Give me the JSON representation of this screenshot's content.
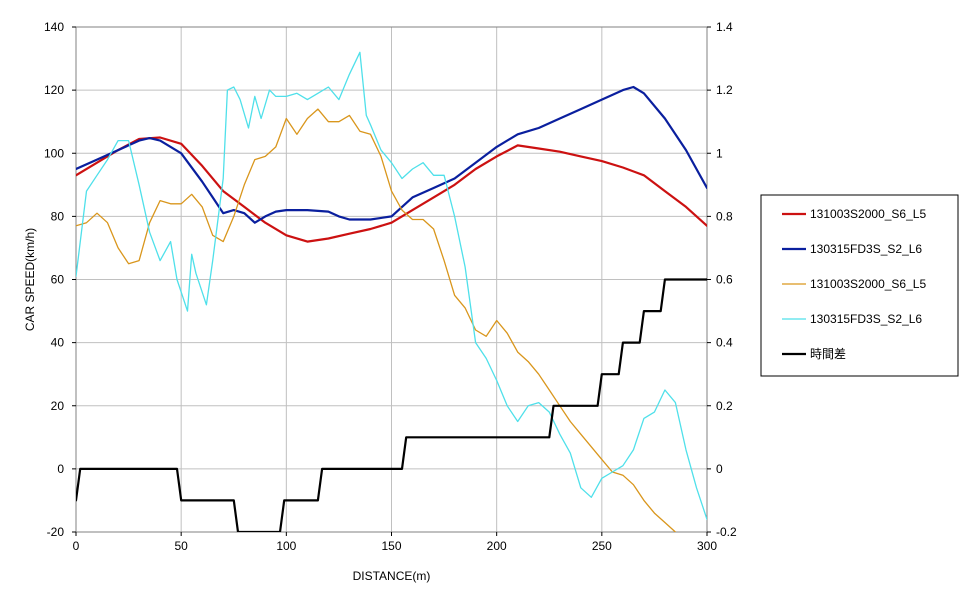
{
  "chart_data": {
    "type": "line",
    "title": "",
    "xlabel": "DISTANCE(m)",
    "ylabel": "CAR SPEED(km/h)",
    "y2label": "",
    "xlim": [
      0,
      300
    ],
    "ylim": [
      -20,
      140
    ],
    "y2lim": [
      -0.2,
      1.4
    ],
    "x_ticks": [
      "0",
      "50",
      "100",
      "150",
      "200",
      "250",
      "300"
    ],
    "y_ticks": [
      "-20",
      "0",
      "20",
      "40",
      "60",
      "80",
      "100",
      "120",
      "140"
    ],
    "y2_ticks": [
      "-0.2",
      "0",
      "0.2",
      "0.4",
      "0.6",
      "0.8",
      "1",
      "1.2",
      "1.4"
    ],
    "grid": true,
    "legend_position": "right",
    "series": [
      {
        "name": "131003S2000_S6_L5",
        "color": "#cc1111",
        "axis": "left",
        "x": [
          0,
          10,
          20,
          30,
          40,
          50,
          60,
          70,
          80,
          90,
          100,
          110,
          120,
          130,
          140,
          150,
          160,
          170,
          180,
          190,
          200,
          210,
          220,
          230,
          240,
          250,
          260,
          270,
          280,
          290,
          300
        ],
        "y": [
          93,
          97,
          101,
          104.5,
          105,
          103,
          96,
          88,
          83,
          78,
          74,
          72,
          73,
          74.5,
          76,
          78,
          82,
          86,
          90,
          95,
          99,
          102.5,
          101.5,
          100.5,
          99,
          97.5,
          95.5,
          93,
          88,
          83,
          77
        ]
      },
      {
        "name": "130315FD3S_S2_L6",
        "color": "#0a1f9e",
        "axis": "left",
        "x": [
          0,
          10,
          20,
          30,
          35,
          40,
          50,
          60,
          65,
          70,
          75,
          80,
          85,
          90,
          95,
          100,
          110,
          120,
          125,
          130,
          140,
          150,
          160,
          170,
          180,
          190,
          200,
          210,
          220,
          230,
          240,
          250,
          255,
          260,
          265,
          270,
          280,
          290,
          300
        ],
        "y": [
          95,
          98,
          101,
          104,
          104.8,
          104,
          100,
          91,
          86,
          81,
          82,
          81,
          78,
          80,
          81.5,
          82,
          82,
          81.5,
          80,
          79,
          79,
          80,
          86,
          89,
          92,
          97,
          102,
          106,
          108,
          111,
          114,
          117,
          118.5,
          120,
          121,
          119,
          111,
          101,
          89
        ]
      },
      {
        "name": "131003S2000_S6_L5",
        "color": "#d9961c",
        "axis": "left",
        "x": [
          0,
          5,
          10,
          15,
          20,
          25,
          30,
          35,
          40,
          45,
          50,
          55,
          60,
          65,
          70,
          75,
          80,
          85,
          90,
          95,
          100,
          105,
          110,
          115,
          120,
          125,
          130,
          135,
          140,
          145,
          150,
          155,
          160,
          165,
          170,
          175,
          180,
          185,
          190,
          195,
          200,
          205,
          210,
          215,
          220,
          225,
          230,
          235,
          240,
          245,
          250,
          255,
          260,
          265,
          270,
          275,
          280,
          285
        ],
        "y": [
          77,
          78,
          81,
          78,
          70,
          65,
          66,
          78,
          85,
          84,
          84,
          87,
          83,
          74,
          72,
          80,
          90,
          98,
          99,
          102,
          111,
          106,
          111,
          114,
          110,
          110,
          112,
          107,
          106,
          99,
          88,
          82,
          79,
          79,
          76,
          66,
          55,
          51,
          44,
          42,
          47,
          43,
          37,
          34,
          30,
          25,
          20,
          15,
          11,
          7,
          3,
          -1,
          -2,
          -5,
          -10,
          -14,
          -17,
          -20
        ]
      },
      {
        "name": "130315FD3S_S2_L6",
        "color": "#4fe0ea",
        "axis": "left",
        "x": [
          0,
          5,
          10,
          15,
          20,
          25,
          30,
          35,
          40,
          45,
          48,
          53,
          55,
          57,
          62,
          65,
          70,
          72,
          75,
          78,
          82,
          85,
          88,
          92,
          95,
          100,
          105,
          110,
          115,
          120,
          125,
          130,
          135,
          138,
          140,
          145,
          150,
          155,
          160,
          165,
          170,
          175,
          180,
          185,
          190,
          195,
          200,
          205,
          210,
          215,
          220,
          225,
          230,
          235,
          240,
          245,
          250,
          255,
          260,
          265,
          270,
          275,
          280,
          285,
          290,
          295,
          300
        ],
        "y": [
          61,
          88,
          93,
          98,
          104,
          104,
          90,
          75,
          66,
          72,
          60,
          50,
          68,
          62,
          52,
          66,
          92,
          120,
          121,
          117,
          108,
          118,
          111,
          120,
          118,
          118,
          119,
          117,
          119,
          121,
          117,
          125,
          132,
          112,
          109,
          101,
          97,
          92,
          95,
          97,
          93,
          93,
          80,
          64,
          40,
          35,
          28,
          20,
          15,
          20,
          21,
          18,
          11,
          5,
          -6,
          -9,
          -3,
          -1,
          1,
          6,
          16,
          18,
          25,
          21,
          6,
          -6,
          -16
        ]
      },
      {
        "name": "時間差",
        "color": "#000000",
        "axis": "right",
        "step": true,
        "x": [
          0,
          2,
          48,
          50,
          75,
          77,
          97,
          99,
          115,
          117,
          155,
          157,
          225,
          227,
          248,
          250,
          258,
          260,
          268,
          270,
          278,
          280,
          288,
          290,
          300
        ],
        "y": [
          -0.1,
          0,
          0,
          -0.1,
          -0.1,
          -0.2,
          -0.2,
          -0.1,
          -0.1,
          0,
          0,
          0.1,
          0.1,
          0.2,
          0.2,
          0.3,
          0.3,
          0.4,
          0.4,
          0.5,
          0.5,
          0.6,
          0.6,
          0.6,
          0.6
        ]
      }
    ]
  }
}
